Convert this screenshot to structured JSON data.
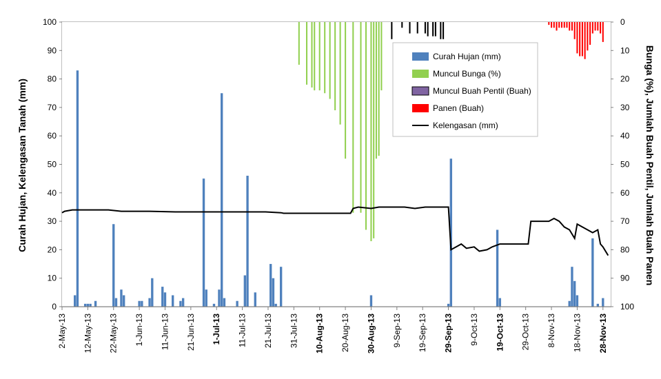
{
  "chart_data": {
    "type": "bar",
    "ylabel": "Curah Hujan, Kelengasan Tanah (mm)",
    "y2label": "Bunga (%), Jumlah Buah Pentil, Jumlah Buah Panen",
    "ylim": [
      0,
      100
    ],
    "y2lim": [
      100,
      0
    ],
    "y2_inverted": true,
    "yticks": [
      0,
      10,
      20,
      30,
      40,
      50,
      60,
      70,
      80,
      90,
      100
    ],
    "y2ticks": [
      0,
      10,
      20,
      30,
      40,
      50,
      60,
      70,
      80,
      90,
      100
    ],
    "xlim": [
      "2013-05-02",
      "2013-12-01"
    ],
    "xticks": [
      {
        "date": "2013-05-02",
        "label": "2-May-13",
        "bold": false
      },
      {
        "date": "2013-05-12",
        "label": "12-May-13",
        "bold": false
      },
      {
        "date": "2013-05-22",
        "label": "22-May-13",
        "bold": false
      },
      {
        "date": "2013-06-01",
        "label": "1-Jun-13",
        "bold": false
      },
      {
        "date": "2013-06-11",
        "label": "11-Jun-13",
        "bold": false
      },
      {
        "date": "2013-06-21",
        "label": "21-Jun-13",
        "bold": false
      },
      {
        "date": "2013-07-01",
        "label": "1-Jul-13",
        "bold": true
      },
      {
        "date": "2013-07-11",
        "label": "11-Jul-13",
        "bold": false
      },
      {
        "date": "2013-07-21",
        "label": "21-Jul-13",
        "bold": false
      },
      {
        "date": "2013-07-31",
        "label": "31-Jul-13",
        "bold": false
      },
      {
        "date": "2013-08-10",
        "label": "10-Aug-13",
        "bold": true
      },
      {
        "date": "2013-08-20",
        "label": "20-Aug-13",
        "bold": false
      },
      {
        "date": "2013-08-30",
        "label": "30-Aug-13",
        "bold": true
      },
      {
        "date": "2013-09-09",
        "label": "9-Sep-13",
        "bold": false
      },
      {
        "date": "2013-09-19",
        "label": "19-Sep-13",
        "bold": false
      },
      {
        "date": "2013-09-29",
        "label": "29-Sep-13",
        "bold": true
      },
      {
        "date": "2013-10-09",
        "label": "9-Oct-13",
        "bold": false
      },
      {
        "date": "2013-10-19",
        "label": "19-Oct-13",
        "bold": true
      },
      {
        "date": "2013-10-29",
        "label": "29-Oct-13",
        "bold": false
      },
      {
        "date": "2013-11-08",
        "label": "8-Nov-13",
        "bold": false
      },
      {
        "date": "2013-11-18",
        "label": "18-Nov-13",
        "bold": false
      },
      {
        "date": "2013-11-28",
        "label": "28-Nov-13",
        "bold": true
      }
    ],
    "grid": false,
    "legend_position": "top-center",
    "series": [
      {
        "name": "Curah Hujan (mm)",
        "kind": "bar",
        "axis": "left",
        "color": "#4f81bd",
        "points": [
          {
            "x": "2013-05-07",
            "y": 4
          },
          {
            "x": "2013-05-08",
            "y": 83
          },
          {
            "x": "2013-05-11",
            "y": 1
          },
          {
            "x": "2013-05-12",
            "y": 1
          },
          {
            "x": "2013-05-13",
            "y": 1
          },
          {
            "x": "2013-05-15",
            "y": 2
          },
          {
            "x": "2013-05-22",
            "y": 29
          },
          {
            "x": "2013-05-23",
            "y": 3
          },
          {
            "x": "2013-05-25",
            "y": 6
          },
          {
            "x": "2013-05-26",
            "y": 4
          },
          {
            "x": "2013-06-01",
            "y": 2
          },
          {
            "x": "2013-06-02",
            "y": 2
          },
          {
            "x": "2013-06-05",
            "y": 3
          },
          {
            "x": "2013-06-06",
            "y": 10
          },
          {
            "x": "2013-06-10",
            "y": 7
          },
          {
            "x": "2013-06-11",
            "y": 5
          },
          {
            "x": "2013-06-14",
            "y": 4
          },
          {
            "x": "2013-06-17",
            "y": 2
          },
          {
            "x": "2013-06-18",
            "y": 3
          },
          {
            "x": "2013-06-26",
            "y": 45
          },
          {
            "x": "2013-06-27",
            "y": 6
          },
          {
            "x": "2013-06-30",
            "y": 1
          },
          {
            "x": "2013-07-02",
            "y": 6
          },
          {
            "x": "2013-07-03",
            "y": 75
          },
          {
            "x": "2013-07-04",
            "y": 3
          },
          {
            "x": "2013-07-09",
            "y": 2
          },
          {
            "x": "2013-07-12",
            "y": 11
          },
          {
            "x": "2013-07-13",
            "y": 46
          },
          {
            "x": "2013-07-16",
            "y": 5
          },
          {
            "x": "2013-07-22",
            "y": 15
          },
          {
            "x": "2013-07-23",
            "y": 10
          },
          {
            "x": "2013-07-24",
            "y": 1
          },
          {
            "x": "2013-07-26",
            "y": 14
          },
          {
            "x": "2013-08-30",
            "y": 4
          },
          {
            "x": "2013-09-29",
            "y": 1
          },
          {
            "x": "2013-09-30",
            "y": 52
          },
          {
            "x": "2013-10-18",
            "y": 27
          },
          {
            "x": "2013-10-19",
            "y": 3
          },
          {
            "x": "2013-11-15",
            "y": 2
          },
          {
            "x": "2013-11-16",
            "y": 14
          },
          {
            "x": "2013-11-17",
            "y": 9
          },
          {
            "x": "2013-11-18",
            "y": 4
          },
          {
            "x": "2013-11-24",
            "y": 24
          },
          {
            "x": "2013-11-26",
            "y": 1
          },
          {
            "x": "2013-11-28",
            "y": 3
          }
        ]
      },
      {
        "name": "Muncul Bunga (%)",
        "kind": "bar",
        "axis": "right",
        "color": "#92d050",
        "points": [
          {
            "x": "2013-08-02",
            "y": 15
          },
          {
            "x": "2013-08-05",
            "y": 22
          },
          {
            "x": "2013-08-07",
            "y": 23
          },
          {
            "x": "2013-08-08",
            "y": 24
          },
          {
            "x": "2013-08-10",
            "y": 24
          },
          {
            "x": "2013-08-12",
            "y": 25
          },
          {
            "x": "2013-08-14",
            "y": 27
          },
          {
            "x": "2013-08-16",
            "y": 31
          },
          {
            "x": "2013-08-18",
            "y": 36
          },
          {
            "x": "2013-08-20",
            "y": 48
          },
          {
            "x": "2013-08-23",
            "y": 67
          },
          {
            "x": "2013-08-26",
            "y": 67
          },
          {
            "x": "2013-08-28",
            "y": 73
          },
          {
            "x": "2013-08-30",
            "y": 77
          },
          {
            "x": "2013-08-31",
            "y": 76
          },
          {
            "x": "2013-09-01",
            "y": 48
          },
          {
            "x": "2013-09-02",
            "y": 47
          },
          {
            "x": "2013-09-03",
            "y": 24
          }
        ]
      },
      {
        "name": "Muncul Buah Pentil (Buah)",
        "kind": "bar",
        "axis": "right",
        "color": "#000000",
        "legend_color": "#8064a2",
        "points": [
          {
            "x": "2013-09-07",
            "y": 6
          },
          {
            "x": "2013-09-11",
            "y": 2
          },
          {
            "x": "2013-09-14",
            "y": 4
          },
          {
            "x": "2013-09-17",
            "y": 4
          },
          {
            "x": "2013-09-20",
            "y": 4
          },
          {
            "x": "2013-09-21",
            "y": 5
          },
          {
            "x": "2013-09-23",
            "y": 5
          },
          {
            "x": "2013-09-24",
            "y": 5
          },
          {
            "x": "2013-09-26",
            "y": 6
          },
          {
            "x": "2013-09-27",
            "y": 6
          }
        ]
      },
      {
        "name": "Panen (Buah)",
        "kind": "bar",
        "axis": "right",
        "color": "#ff0000",
        "points": [
          {
            "x": "2013-11-07",
            "y": 1
          },
          {
            "x": "2013-11-08",
            "y": 2
          },
          {
            "x": "2013-11-09",
            "y": 2
          },
          {
            "x": "2013-11-10",
            "y": 3
          },
          {
            "x": "2013-11-11",
            "y": 2
          },
          {
            "x": "2013-11-12",
            "y": 2
          },
          {
            "x": "2013-11-13",
            "y": 2
          },
          {
            "x": "2013-11-14",
            "y": 2
          },
          {
            "x": "2013-11-15",
            "y": 3
          },
          {
            "x": "2013-11-16",
            "y": 3
          },
          {
            "x": "2013-11-17",
            "y": 6
          },
          {
            "x": "2013-11-18",
            "y": 11
          },
          {
            "x": "2013-11-19",
            "y": 12
          },
          {
            "x": "2013-11-20",
            "y": 12
          },
          {
            "x": "2013-11-21",
            "y": 13
          },
          {
            "x": "2013-11-22",
            "y": 10
          },
          {
            "x": "2013-11-23",
            "y": 8
          },
          {
            "x": "2013-11-24",
            "y": 4
          },
          {
            "x": "2013-11-25",
            "y": 3
          },
          {
            "x": "2013-11-26",
            "y": 3
          },
          {
            "x": "2013-11-27",
            "y": 4
          },
          {
            "x": "2013-11-28",
            "y": 7
          }
        ]
      },
      {
        "name": "Kelengasan (mm)",
        "kind": "line",
        "axis": "left",
        "color": "#000000",
        "points": [
          {
            "x": "2013-05-02",
            "y": 33
          },
          {
            "x": "2013-05-03",
            "y": 33.5
          },
          {
            "x": "2013-05-06",
            "y": 34
          },
          {
            "x": "2013-05-20",
            "y": 34
          },
          {
            "x": "2013-05-25",
            "y": 33.5
          },
          {
            "x": "2013-06-05",
            "y": 33.5
          },
          {
            "x": "2013-06-15",
            "y": 33.3
          },
          {
            "x": "2013-07-01",
            "y": 33.3
          },
          {
            "x": "2013-07-20",
            "y": 33.3
          },
          {
            "x": "2013-07-26",
            "y": 33
          },
          {
            "x": "2013-07-27",
            "y": 32.8
          },
          {
            "x": "2013-08-01",
            "y": 32.8
          },
          {
            "x": "2013-08-22",
            "y": 32.8
          },
          {
            "x": "2013-08-23",
            "y": 34.5
          },
          {
            "x": "2013-08-25",
            "y": 35
          },
          {
            "x": "2013-08-30",
            "y": 34.5
          },
          {
            "x": "2013-09-02",
            "y": 35
          },
          {
            "x": "2013-09-12",
            "y": 35
          },
          {
            "x": "2013-09-16",
            "y": 34.5
          },
          {
            "x": "2013-09-20",
            "y": 35
          },
          {
            "x": "2013-09-29",
            "y": 35
          },
          {
            "x": "2013-09-30",
            "y": 20
          },
          {
            "x": "2013-10-02",
            "y": 21
          },
          {
            "x": "2013-10-04",
            "y": 22
          },
          {
            "x": "2013-10-06",
            "y": 20.5
          },
          {
            "x": "2013-10-09",
            "y": 21
          },
          {
            "x": "2013-10-11",
            "y": 19.5
          },
          {
            "x": "2013-10-14",
            "y": 20
          },
          {
            "x": "2013-10-16",
            "y": 21
          },
          {
            "x": "2013-10-19",
            "y": 22
          },
          {
            "x": "2013-10-22",
            "y": 22
          },
          {
            "x": "2013-10-30",
            "y": 22
          },
          {
            "x": "2013-10-31",
            "y": 30
          },
          {
            "x": "2013-11-07",
            "y": 30
          },
          {
            "x": "2013-11-09",
            "y": 31
          },
          {
            "x": "2013-11-11",
            "y": 30
          },
          {
            "x": "2013-11-13",
            "y": 28
          },
          {
            "x": "2013-11-15",
            "y": 27
          },
          {
            "x": "2013-11-17",
            "y": 24
          },
          {
            "x": "2013-11-18",
            "y": 29
          },
          {
            "x": "2013-11-20",
            "y": 28
          },
          {
            "x": "2013-11-22",
            "y": 27
          },
          {
            "x": "2013-11-24",
            "y": 26
          },
          {
            "x": "2013-11-26",
            "y": 27
          },
          {
            "x": "2013-11-27",
            "y": 22
          },
          {
            "x": "2013-11-28",
            "y": 21
          },
          {
            "x": "2013-11-30",
            "y": 18
          }
        ]
      }
    ]
  }
}
